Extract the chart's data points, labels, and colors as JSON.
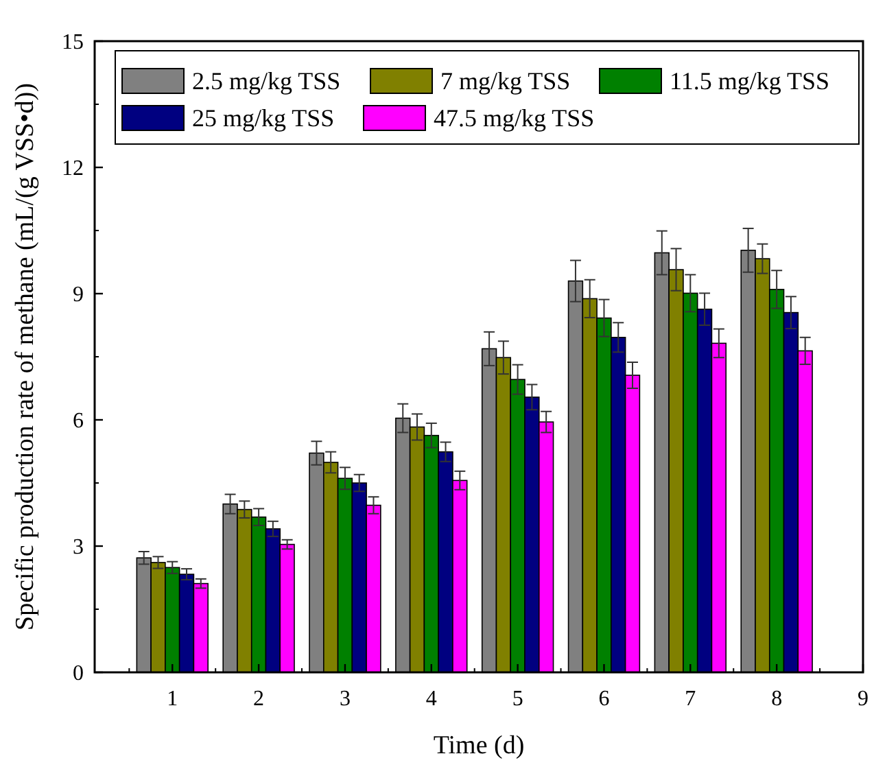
{
  "chart_data": {
    "type": "bar",
    "xlabel": "Time (d)",
    "ylabel": "Specific production rate of methane (mL/(g VSS•d))",
    "x": [
      1,
      2,
      3,
      4,
      5,
      6,
      7,
      8
    ],
    "xlim": [
      0.1,
      9
    ],
    "xticks": [
      1,
      2,
      3,
      4,
      5,
      6,
      7,
      8,
      9
    ],
    "ylim": [
      0,
      15
    ],
    "yticks": [
      0,
      3,
      6,
      9,
      12,
      15
    ],
    "legend": "top left",
    "grid": false,
    "series": [
      {
        "name": "2.5 mg/kg TSS",
        "color": "#808080",
        "values": [
          2.72,
          4.0,
          5.21,
          6.04,
          7.69,
          9.3,
          9.97,
          10.03
        ],
        "errors": [
          0.15,
          0.23,
          0.28,
          0.34,
          0.4,
          0.49,
          0.52,
          0.52
        ]
      },
      {
        "name": "7 mg/kg TSS",
        "color": "#808000",
        "values": [
          2.61,
          3.87,
          4.99,
          5.83,
          7.48,
          8.88,
          9.57,
          9.83
        ],
        "errors": [
          0.14,
          0.2,
          0.25,
          0.31,
          0.39,
          0.45,
          0.5,
          0.35
        ]
      },
      {
        "name": "11.5 mg/kg TSS",
        "color": "#008000",
        "values": [
          2.49,
          3.69,
          4.61,
          5.63,
          6.96,
          8.42,
          9.01,
          9.1
        ],
        "errors": [
          0.14,
          0.2,
          0.26,
          0.29,
          0.35,
          0.44,
          0.44,
          0.45
        ]
      },
      {
        "name": "25 mg/kg TSS",
        "color": "#000080",
        "values": [
          2.33,
          3.41,
          4.5,
          5.24,
          6.54,
          7.96,
          8.63,
          8.55
        ],
        "errors": [
          0.13,
          0.18,
          0.2,
          0.23,
          0.3,
          0.35,
          0.38,
          0.38
        ]
      },
      {
        "name": "47.5 mg/kg TSS",
        "color": "#ff00ff",
        "values": [
          2.11,
          3.04,
          3.97,
          4.56,
          5.95,
          7.06,
          7.82,
          7.64
        ],
        "errors": [
          0.11,
          0.11,
          0.2,
          0.22,
          0.25,
          0.31,
          0.34,
          0.32
        ]
      }
    ]
  }
}
